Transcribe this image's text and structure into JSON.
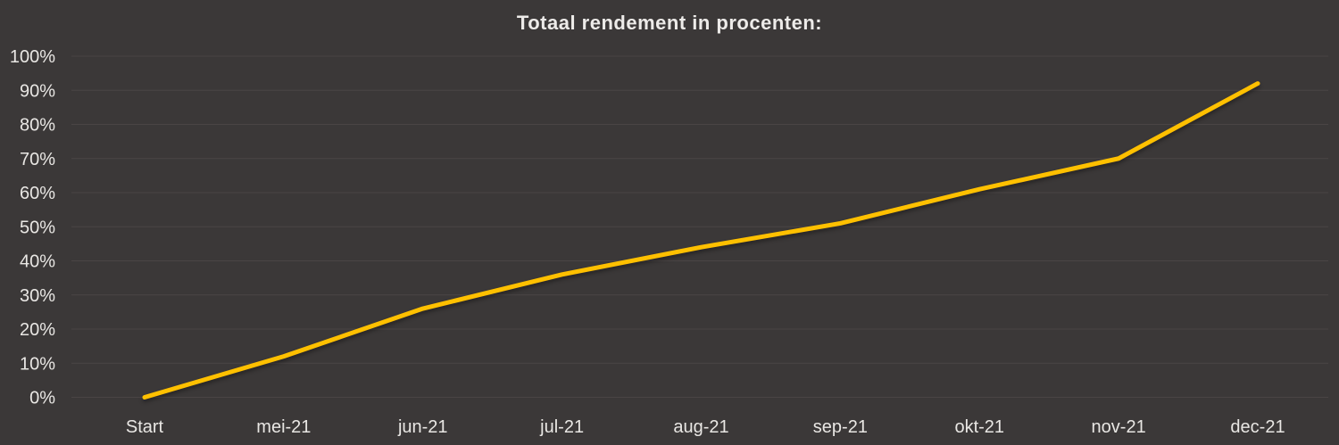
{
  "chart_data": {
    "type": "line",
    "title": "Totaal rendement in procenten:",
    "categories": [
      "Start",
      "mei-21",
      "jun-21",
      "jul-21",
      "aug-21",
      "sep-21",
      "okt-21",
      "nov-21",
      "dec-21"
    ],
    "series": [
      {
        "name": "Totaal rendement",
        "values": [
          0,
          12,
          26,
          36,
          44,
          51,
          61,
          70,
          92
        ]
      }
    ],
    "xlabel": "",
    "ylabel": "",
    "ylim": [
      0,
      100
    ],
    "y_tick_step": 10,
    "y_tick_labels": [
      "0%",
      "10%",
      "20%",
      "30%",
      "40%",
      "50%",
      "60%",
      "70%",
      "80%",
      "90%",
      "100%"
    ],
    "grid": true,
    "legend_position": "none",
    "colors": {
      "background": "#3B3838",
      "line": "#FFC000",
      "text": "#E9E7E4",
      "gridline": "#4A4545"
    }
  }
}
